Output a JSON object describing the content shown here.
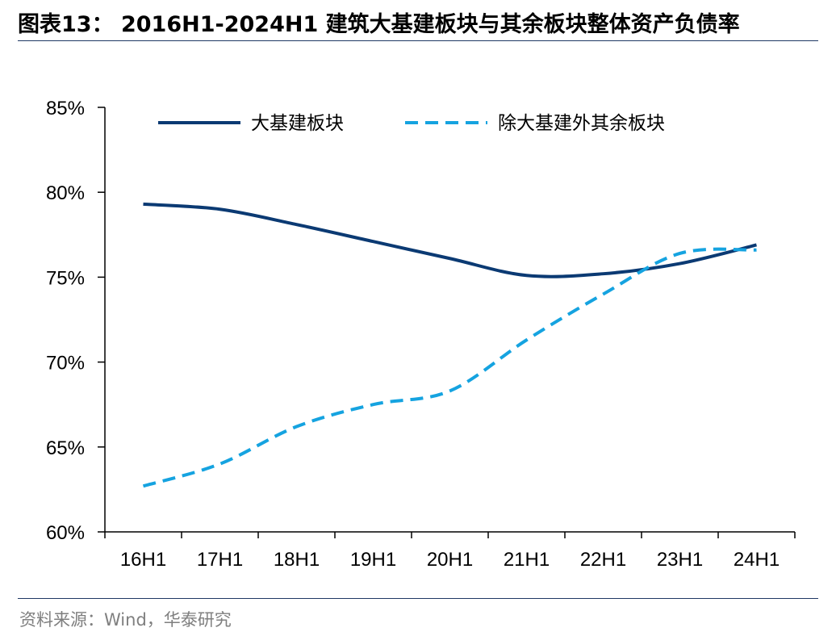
{
  "header": {
    "title": "图表13： 2016H1-2024H1 建筑大基建板块与其余板块整体资产负债率"
  },
  "footer": {
    "source": "资料来源：Wind，华泰研究"
  },
  "colors": {
    "series_main": "#0b3a73",
    "series_other": "#15a3e0",
    "axis": "#000000",
    "rule": "#1f3864"
  },
  "chart_data": {
    "type": "line",
    "categories": [
      "16H1",
      "17H1",
      "18H1",
      "19H1",
      "20H1",
      "21H1",
      "22H1",
      "23H1",
      "24H1"
    ],
    "ylim": [
      0.6,
      0.85
    ],
    "y_ticks": [
      0.6,
      0.65,
      0.7,
      0.75,
      0.8,
      0.85
    ],
    "y_tick_labels": [
      "60%",
      "65%",
      "70%",
      "75%",
      "80%",
      "85%"
    ],
    "grid": false,
    "legend_position": "top",
    "series": [
      {
        "name": "大基建板块",
        "style": "solid",
        "color": "#0b3a73",
        "values": [
          0.793,
          0.79,
          0.781,
          0.771,
          0.761,
          0.751,
          0.752,
          0.758,
          0.769
        ]
      },
      {
        "name": "除大基建外其余板块",
        "style": "dashed",
        "color": "#15a3e0",
        "values": [
          0.627,
          0.64,
          0.662,
          0.675,
          0.683,
          0.713,
          0.74,
          0.764,
          0.766
        ]
      }
    ]
  }
}
